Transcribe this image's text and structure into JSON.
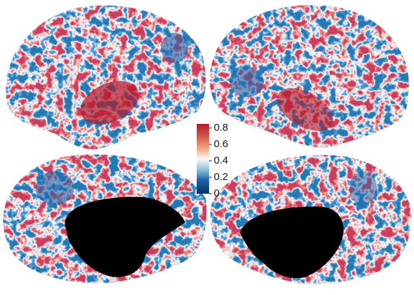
{
  "colorbar": {
    "lim": [
      0,
      0.85
    ],
    "ticks": [
      0,
      0.2,
      0.4,
      0.6,
      0.8
    ]
  }
}
